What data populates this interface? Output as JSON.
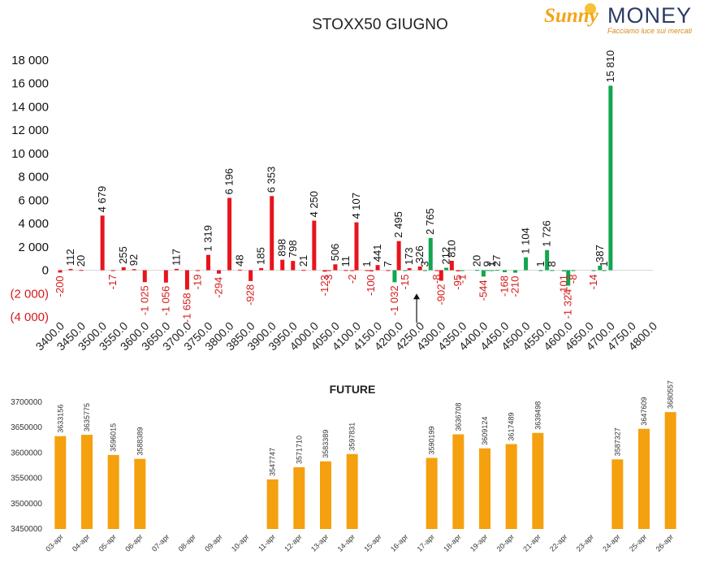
{
  "logo": {
    "brand_1": "Sunny",
    "brand_2": "MONEY",
    "tagline": "Facciamo luce sui mercati"
  },
  "colors": {
    "red": "#e8141c",
    "green": "#12a650",
    "orange": "#f5a00f",
    "ytick_red": "#d41b1b"
  },
  "chart_data": [
    {
      "type": "bar",
      "title": "STOXX50 GIUGNO",
      "xlabel": "",
      "ylabel": "",
      "ylim": [
        -4000,
        18000
      ],
      "y_ticks": [
        "(4 000)",
        "(2 000)",
        "0",
        "2 000",
        "4 000",
        "6 000",
        "8 000",
        "10 000",
        "12 000",
        "14 000",
        "16 000",
        "18 000"
      ],
      "categories": [
        "3400.0",
        "3450.0",
        "3500.0",
        "3550.0",
        "3600.0",
        "3650.0",
        "3700.0",
        "3750.0",
        "3800.0",
        "3850.0",
        "3900.0",
        "3950.0",
        "4000.0",
        "4050.0",
        "4100.0",
        "4150.0",
        "4200.0",
        "4250.0",
        "4300.0",
        "4350.0",
        "4400.0",
        "4450.0",
        "4500.0",
        "4550.0",
        "4600.0",
        "4650.0",
        "4700.0",
        "4750.0",
        "4800.0"
      ],
      "series": [
        {
          "color": "#e8141c",
          "bars": [
            {
              "x": 3400,
              "y": -200,
              "label": "-200"
            },
            {
              "x": 3425,
              "y": 112,
              "label": "112"
            },
            {
              "x": 3450,
              "y": 20,
              "label": "20"
            },
            {
              "x": 3500,
              "y": 4679,
              "label": "4 679"
            },
            {
              "x": 3525,
              "y": -17,
              "label": "-17"
            },
            {
              "x": 3550,
              "y": 255,
              "label": "255"
            },
            {
              "x": 3575,
              "y": 92,
              "label": "92"
            },
            {
              "x": 3600,
              "y": -1025,
              "label": "-1 025"
            },
            {
              "x": 3650,
              "y": -1056,
              "label": "-1 056"
            },
            {
              "x": 3675,
              "y": 117,
              "label": "117"
            },
            {
              "x": 3700,
              "y": -1658,
              "label": "-1 658"
            },
            {
              "x": 3725,
              "y": -19,
              "label": "-19"
            },
            {
              "x": 3750,
              "y": 1319,
              "label": "1 319"
            },
            {
              "x": 3775,
              "y": -294,
              "label": "-294"
            },
            {
              "x": 3800,
              "y": 6196,
              "label": "6 196"
            },
            {
              "x": 3825,
              "y": 48,
              "label": "48"
            },
            {
              "x": 3850,
              "y": -928,
              "label": "-928"
            },
            {
              "x": 3875,
              "y": 185,
              "label": "185"
            },
            {
              "x": 3900,
              "y": 6353,
              "label": "6 353"
            },
            {
              "x": 3925,
              "y": 898,
              "label": "898"
            },
            {
              "x": 3950,
              "y": 798,
              "label": "798"
            },
            {
              "x": 3975,
              "y": 21,
              "label": "21"
            },
            {
              "x": 4000,
              "y": 4250,
              "label": "4 250"
            },
            {
              "x": 4025,
              "y": -123,
              "label": "-123"
            },
            {
              "x": 4035,
              "y": -3,
              "label": "-3"
            },
            {
              "x": 4050,
              "y": 506,
              "label": "506"
            },
            {
              "x": 4075,
              "y": 11,
              "label": "11"
            },
            {
              "x": 4090,
              "y": -2,
              "label": "-2"
            },
            {
              "x": 4100,
              "y": 4107,
              "label": "4 107"
            },
            {
              "x": 4125,
              "y": 1,
              "label": "1"
            },
            {
              "x": 4135,
              "y": -100,
              "label": "-100"
            },
            {
              "x": 4150,
              "y": 441,
              "label": "441"
            },
            {
              "x": 4175,
              "y": 7,
              "label": "7"
            },
            {
              "x": 4200,
              "y": 2495,
              "label": "2 495"
            },
            {
              "x": 4225,
              "y": 173,
              "label": "173"
            },
            {
              "x": 4250,
              "y": 326,
              "label": "326"
            },
            {
              "x": 4290,
              "y": -8,
              "label": "-8"
            },
            {
              "x": 4300,
              "y": -902,
              "label": "-902"
            },
            {
              "x": 4325,
              "y": 810,
              "label": "810"
            },
            {
              "x": 4340,
              "y": -95,
              "label": "-95"
            }
          ]
        },
        {
          "color": "#12a650",
          "bars": [
            {
              "x": 4190,
              "y": -1032,
              "label": "-1 032"
            },
            {
              "x": 4215,
              "y": -15,
              "label": "-15"
            },
            {
              "x": 4262,
              "y": 3,
              "label": "3"
            },
            {
              "x": 4275,
              "y": 2765,
              "label": "2 765"
            },
            {
              "x": 4312,
              "y": 212,
              "label": "212"
            },
            {
              "x": 4350,
              "y": -1,
              "label": "-1"
            },
            {
              "x": 4385,
              "y": 20,
              "label": "20"
            },
            {
              "x": 4400,
              "y": -544,
              "label": "-544"
            },
            {
              "x": 4410,
              "y": 9,
              "label": "9"
            },
            {
              "x": 4420,
              "y": 1,
              "label": "1"
            },
            {
              "x": 4432,
              "y": 27,
              "label": "27"
            },
            {
              "x": 4450,
              "y": -168,
              "label": "-168"
            },
            {
              "x": 4475,
              "y": -210,
              "label": "-210"
            },
            {
              "x": 4500,
              "y": 1104,
              "label": "1 104"
            },
            {
              "x": 4535,
              "y": 1,
              "label": "1"
            },
            {
              "x": 4550,
              "y": 1726,
              "label": "1 726"
            },
            {
              "x": 4562,
              "y": 8,
              "label": "8"
            },
            {
              "x": 4590,
              "y": -101,
              "label": "-101"
            },
            {
              "x": 4600,
              "y": -1324,
              "label": "-1 324"
            },
            {
              "x": 4612,
              "y": -8,
              "label": "-8"
            },
            {
              "x": 4660,
              "y": -14,
              "label": "-14"
            },
            {
              "x": 4675,
              "y": 387,
              "label": "387"
            },
            {
              "x": 4685,
              "y": 1,
              "label": "1"
            },
            {
              "x": 4700,
              "y": 15810,
              "label": "15 810"
            }
          ]
        }
      ],
      "annotation": {
        "type": "arrow",
        "x": 4242,
        "from_y": -4500,
        "to_y": -2000
      }
    },
    {
      "type": "bar",
      "title": "FUTURE",
      "xlabel": "",
      "ylabel": "",
      "ylim": [
        3450000,
        3700000
      ],
      "y_ticks": [
        "3450000",
        "3500000",
        "3550000",
        "3600000",
        "3650000",
        "3700000"
      ],
      "color": "#f5a00f",
      "categories": [
        "03-apr",
        "04-apr",
        "05-apr",
        "06-apr",
        "07-apr",
        "08-apr",
        "09-apr",
        "10-apr",
        "11-apr",
        "12-apr",
        "13-apr",
        "14-apr",
        "15-apr",
        "16-apr",
        "17-apr",
        "18-apr",
        "19-apr",
        "20-apr",
        "21-apr",
        "22-apr",
        "23-apr",
        "24-apr",
        "25-apr",
        "26-apr"
      ],
      "values": [
        3633156,
        3635775,
        3596015,
        3588389,
        null,
        null,
        null,
        null,
        3547747,
        3571710,
        3583389,
        3597831,
        null,
        null,
        3590199,
        3636708,
        3609124,
        3617489,
        3639498,
        null,
        null,
        3587327,
        3647609,
        3680557
      ],
      "labels": [
        "3633156",
        "3635775",
        "3596015",
        "3588389",
        "",
        "",
        "",
        "",
        "3547747",
        "3571710",
        "3583389",
        "3597831",
        "",
        "",
        "3590199",
        "3636708",
        "3609124",
        "3617489",
        "3639498",
        "",
        "",
        "3587327",
        "3647609",
        "3680557"
      ]
    }
  ]
}
